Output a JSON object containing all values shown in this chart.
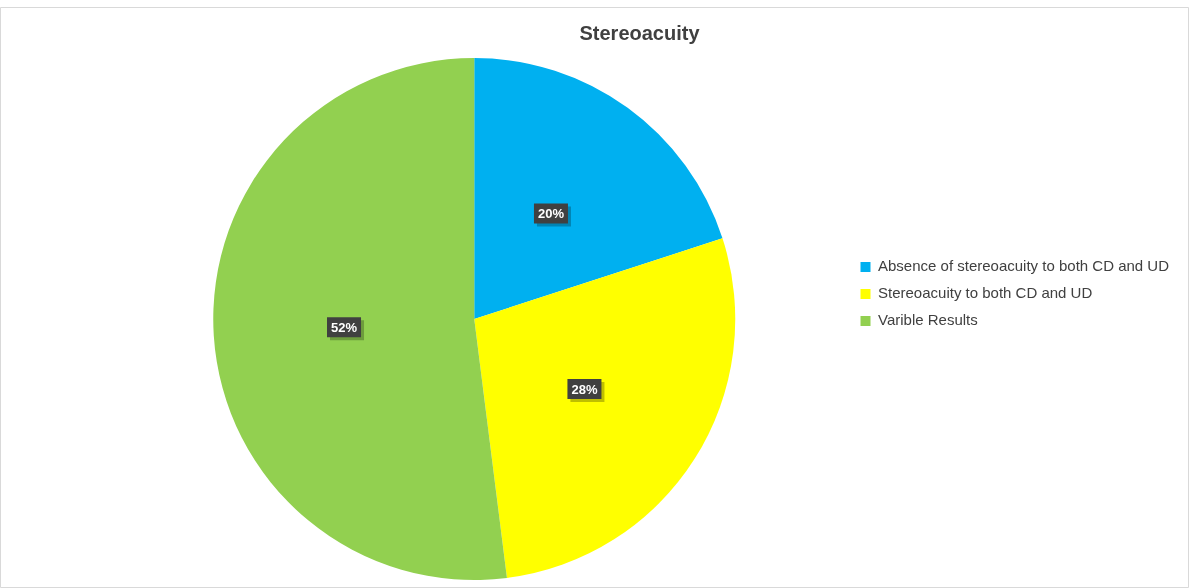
{
  "chart_data": {
    "type": "pie",
    "title": "Stereoacuity",
    "categories": [
      "Absence of stereoacuity to both CD and UD",
      "Stereoacuity to both CD and UD",
      "Varible Results"
    ],
    "values": [
      20,
      28,
      52
    ],
    "colors": [
      "#00b0f0",
      "#ffff00",
      "#92d050"
    ],
    "value_labels": [
      "20%",
      "28%",
      "52%"
    ],
    "legend": "right"
  }
}
